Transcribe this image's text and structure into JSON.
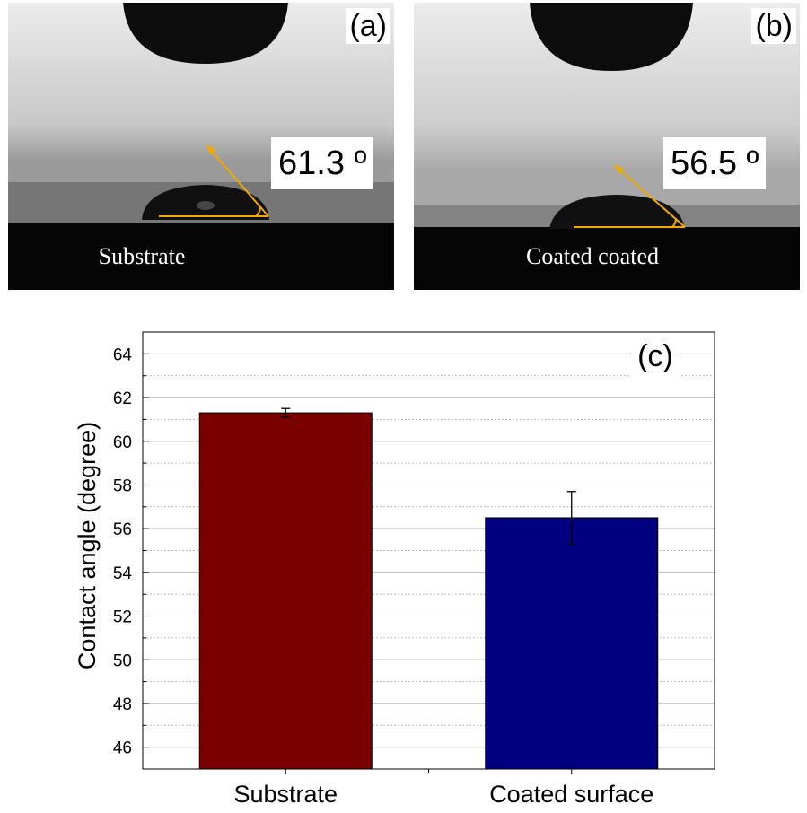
{
  "panels": [
    {
      "letter": "(a)",
      "angle_text": "61.3 º",
      "caption": "Substrate"
    },
    {
      "letter": "(b)",
      "angle_text": "56.5 º",
      "caption": "Coated coated"
    }
  ],
  "chart_data": {
    "type": "bar",
    "panel_label": "(c)",
    "categories": [
      "Substrate",
      "Coated surface"
    ],
    "values": [
      61.3,
      56.5
    ],
    "errors": [
      0.2,
      1.2
    ],
    "bar_colors": [
      "#7a0000",
      "#000080"
    ],
    "title": "",
    "xlabel": "",
    "ylabel": "Contact angle (degree)",
    "ylim": [
      45,
      65
    ],
    "yticks": [
      46,
      48,
      50,
      52,
      54,
      56,
      58,
      60,
      62,
      64
    ],
    "grid": true,
    "legend": "none"
  }
}
